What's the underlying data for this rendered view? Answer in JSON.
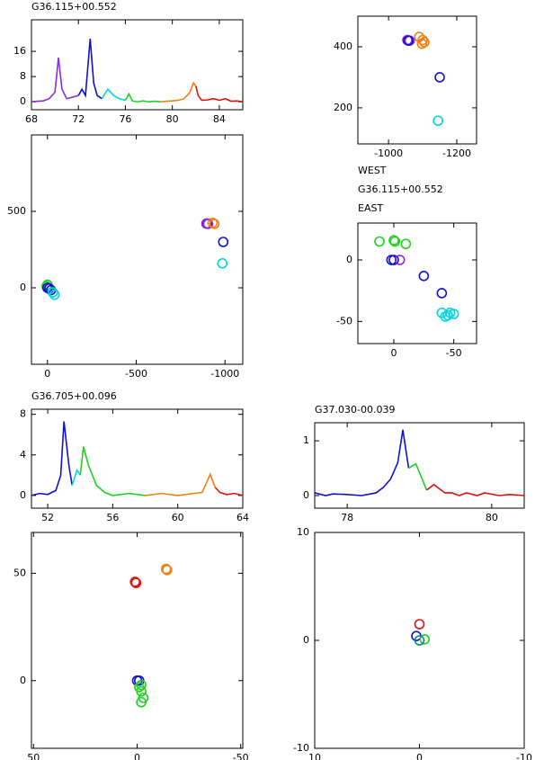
{
  "chart_data": [
    {
      "type": "line",
      "title": "G36.115+00.552",
      "xlim": [
        68,
        86
      ],
      "ylim": [
        -2.5,
        26
      ],
      "xticks": [
        68,
        72,
        76,
        80,
        84
      ],
      "yticks": [
        0,
        8,
        16
      ],
      "series": [
        {
          "color": "#8a2be2",
          "x": [
            68,
            68.5,
            69,
            69.5,
            70,
            70.3,
            70.6,
            71,
            71.5,
            72
          ],
          "values": [
            0,
            0.2,
            0.3,
            1,
            3,
            14,
            4,
            1,
            1.5,
            2
          ]
        },
        {
          "color": "#1010d0",
          "x": [
            72,
            72.3,
            72.6,
            73,
            73.3,
            73.6,
            74
          ],
          "values": [
            2,
            4,
            2,
            20,
            6,
            2,
            1
          ]
        },
        {
          "color": "#00d8e0",
          "x": [
            74,
            74.5,
            75,
            75.5,
            76
          ],
          "values": [
            1,
            4,
            2,
            1,
            0.5
          ]
        },
        {
          "color": "#20d020",
          "x": [
            76,
            76.3,
            76.6,
            77,
            77.5,
            78,
            78.5,
            79
          ],
          "values": [
            0.5,
            2.5,
            0.3,
            0,
            0.3,
            0,
            0.2,
            0
          ]
        },
        {
          "color": "#f08010",
          "x": [
            79,
            79.5,
            80,
            80.5,
            81,
            81.5,
            81.8,
            82
          ],
          "values": [
            0,
            0.2,
            0.3,
            0.5,
            1,
            3,
            6,
            5
          ]
        },
        {
          "color": "#e01010",
          "x": [
            82,
            82.2,
            82.5,
            83,
            83.5,
            84,
            84.5,
            85,
            85.5,
            86
          ],
          "values": [
            5,
            2,
            0.5,
            0.6,
            1,
            0.5,
            1,
            0.2,
            0.3,
            0
          ]
        }
      ]
    },
    {
      "type": "scatter",
      "xlim": [
        -910,
        -1258
      ],
      "ylim": [
        82,
        500
      ],
      "xticks": [
        -1000,
        -1200
      ],
      "yticks": [
        200,
        400
      ],
      "series": [
        {
          "color": "#8a2be2",
          "x": [
            -1055,
            -1062
          ],
          "values": [
            422,
            420
          ]
        },
        {
          "color": "#1010d0",
          "x": [
            -1058,
            -1150
          ],
          "values": [
            420,
            300
          ]
        },
        {
          "color": "#f08010",
          "x": [
            -1090,
            -1100,
            -1105,
            -1098
          ],
          "values": [
            432,
            422,
            415,
            410
          ]
        },
        {
          "color": "#00d8e0",
          "x": [
            -1145
          ],
          "values": [
            158
          ]
        }
      ]
    },
    {
      "type": "scatter",
      "xlim": [
        90,
        -1100
      ],
      "ylim": [
        -500,
        1000
      ],
      "xticks": [
        0,
        -500,
        -1000
      ],
      "yticks": [
        0,
        500
      ],
      "series": [
        {
          "color": "#20d020",
          "x": [
            0,
            5,
            -5
          ],
          "values": [
            20,
            10,
            0
          ]
        },
        {
          "color": "#1010d0",
          "x": [
            0,
            -10,
            -20,
            -990,
            -900
          ],
          "values": [
            0,
            -5,
            -15,
            300,
            420
          ]
        },
        {
          "color": "#00d8e0",
          "x": [
            -30,
            -40,
            -985
          ],
          "values": [
            -30,
            -45,
            160
          ]
        },
        {
          "color": "#8a2be2",
          "x": [
            -895,
            -905
          ],
          "values": [
            420,
            418
          ]
        },
        {
          "color": "#f08010",
          "x": [
            -930,
            -940
          ],
          "values": [
            425,
            418
          ]
        }
      ]
    },
    {
      "type": "scatter",
      "annotations": [
        "WEST",
        "G36.115+00.552",
        "EAST"
      ],
      "xlim": [
        30,
        -69
      ],
      "ylim": [
        -68,
        30
      ],
      "xticks": [
        0,
        -50
      ],
      "yticks": [
        0,
        -50
      ],
      "series": [
        {
          "color": "#20d020",
          "x": [
            12,
            0,
            -1,
            -10
          ],
          "values": [
            15,
            16,
            15,
            13
          ]
        },
        {
          "color": "#1010d0",
          "x": [
            0,
            2,
            -25,
            -40
          ],
          "values": [
            0,
            0,
            -13,
            -27
          ]
        },
        {
          "color": "#8a2be2",
          "x": [
            -5
          ],
          "values": [
            0
          ]
        },
        {
          "color": "#00d8e0",
          "x": [
            -40,
            -43,
            -45,
            -47,
            -50
          ],
          "values": [
            -43,
            -46,
            -45,
            -43,
            -44
          ]
        }
      ]
    },
    {
      "type": "line",
      "title": "G36.705+00.096",
      "xlim": [
        51,
        64
      ],
      "ylim": [
        -1.25,
        8.5
      ],
      "xticks": [
        52,
        56,
        60,
        64
      ],
      "yticks": [
        0,
        4,
        8
      ],
      "series": [
        {
          "color": "#1010d0",
          "x": [
            51,
            51.5,
            52,
            52.5,
            52.8,
            53,
            53.3,
            53.5
          ],
          "values": [
            0,
            0.2,
            0.1,
            0.5,
            2,
            7.3,
            3,
            1
          ]
        },
        {
          "color": "#00d8e0",
          "x": [
            53.5,
            53.8,
            54
          ],
          "values": [
            1,
            2.5,
            2
          ]
        },
        {
          "color": "#20d020",
          "x": [
            54,
            54.2,
            54.5,
            55,
            55.5,
            56,
            57,
            58
          ],
          "values": [
            2,
            4.8,
            3,
            1,
            0.3,
            0,
            0.2,
            0
          ]
        },
        {
          "color": "#f08010",
          "x": [
            58,
            59,
            60,
            61,
            61.5,
            62,
            62.3
          ],
          "values": [
            0,
            0.2,
            0,
            0.2,
            0.3,
            2.1,
            0.8
          ]
        },
        {
          "color": "#e01010",
          "x": [
            62.3,
            62.6,
            63,
            63.5,
            64
          ],
          "values": [
            0.8,
            0.3,
            0.1,
            0.2,
            0
          ]
        }
      ]
    },
    {
      "type": "line",
      "title": "G37.030-00.039",
      "xlim": [
        77.55,
        80.45
      ],
      "ylim": [
        -0.23,
        1.33
      ],
      "xticks": [
        78,
        80
      ],
      "yticks": [
        0,
        1
      ],
      "series": [
        {
          "color": "#1010d0",
          "x": [
            77.55,
            77.7,
            77.8,
            78,
            78.2,
            78.4,
            78.5,
            78.6,
            78.7,
            78.77,
            78.85
          ],
          "values": [
            0.05,
            0,
            0.03,
            0.02,
            0,
            0.05,
            0.15,
            0.3,
            0.6,
            1.2,
            0.5
          ]
        },
        {
          "color": "#20d020",
          "x": [
            78.85,
            78.95,
            79.1
          ],
          "values": [
            0.5,
            0.58,
            0.1
          ]
        },
        {
          "color": "#e01010",
          "x": [
            79.1,
            79.2,
            79.35,
            79.45,
            79.55,
            79.65,
            79.8,
            79.9,
            80.1,
            80.25,
            80.45
          ],
          "values": [
            0.1,
            0.2,
            0.05,
            0.05,
            0,
            0.05,
            0,
            0.05,
            0,
            0.02,
            0
          ]
        }
      ]
    },
    {
      "type": "scatter",
      "xlim": [
        51,
        -51
      ],
      "ylim": [
        -31.5,
        69
      ],
      "xticks": [
        50,
        0,
        -50
      ],
      "yticks": [
        0,
        50
      ],
      "series": [
        {
          "color": "#e01010",
          "x": [
            1,
            0.5
          ],
          "values": [
            46,
            45.5
          ]
        },
        {
          "color": "#f08010",
          "x": [
            -14,
            -14.5
          ],
          "values": [
            52,
            51.5
          ]
        },
        {
          "color": "#1010d0",
          "x": [
            0,
            -1
          ],
          "values": [
            0,
            0
          ]
        },
        {
          "color": "#20d020",
          "x": [
            -2,
            -1,
            -2,
            -3,
            -2
          ],
          "values": [
            -2,
            -3,
            -5,
            -8,
            -10
          ]
        }
      ]
    },
    {
      "type": "scatter",
      "xlim": [
        10,
        -10
      ],
      "ylim": [
        -10,
        10
      ],
      "xticks": [
        10,
        0,
        -10
      ],
      "yticks": [
        -10,
        0,
        10
      ],
      "series": [
        {
          "color": "#e01010",
          "x": [
            0
          ],
          "values": [
            1.5
          ]
        },
        {
          "color": "#1010d0",
          "x": [
            0.3
          ],
          "values": [
            0.4
          ]
        },
        {
          "color": "#20d020",
          "x": [
            -0.5
          ],
          "values": [
            0.1
          ]
        },
        {
          "color": "#008b8b",
          "x": [
            0
          ],
          "values": [
            0
          ]
        }
      ]
    }
  ]
}
